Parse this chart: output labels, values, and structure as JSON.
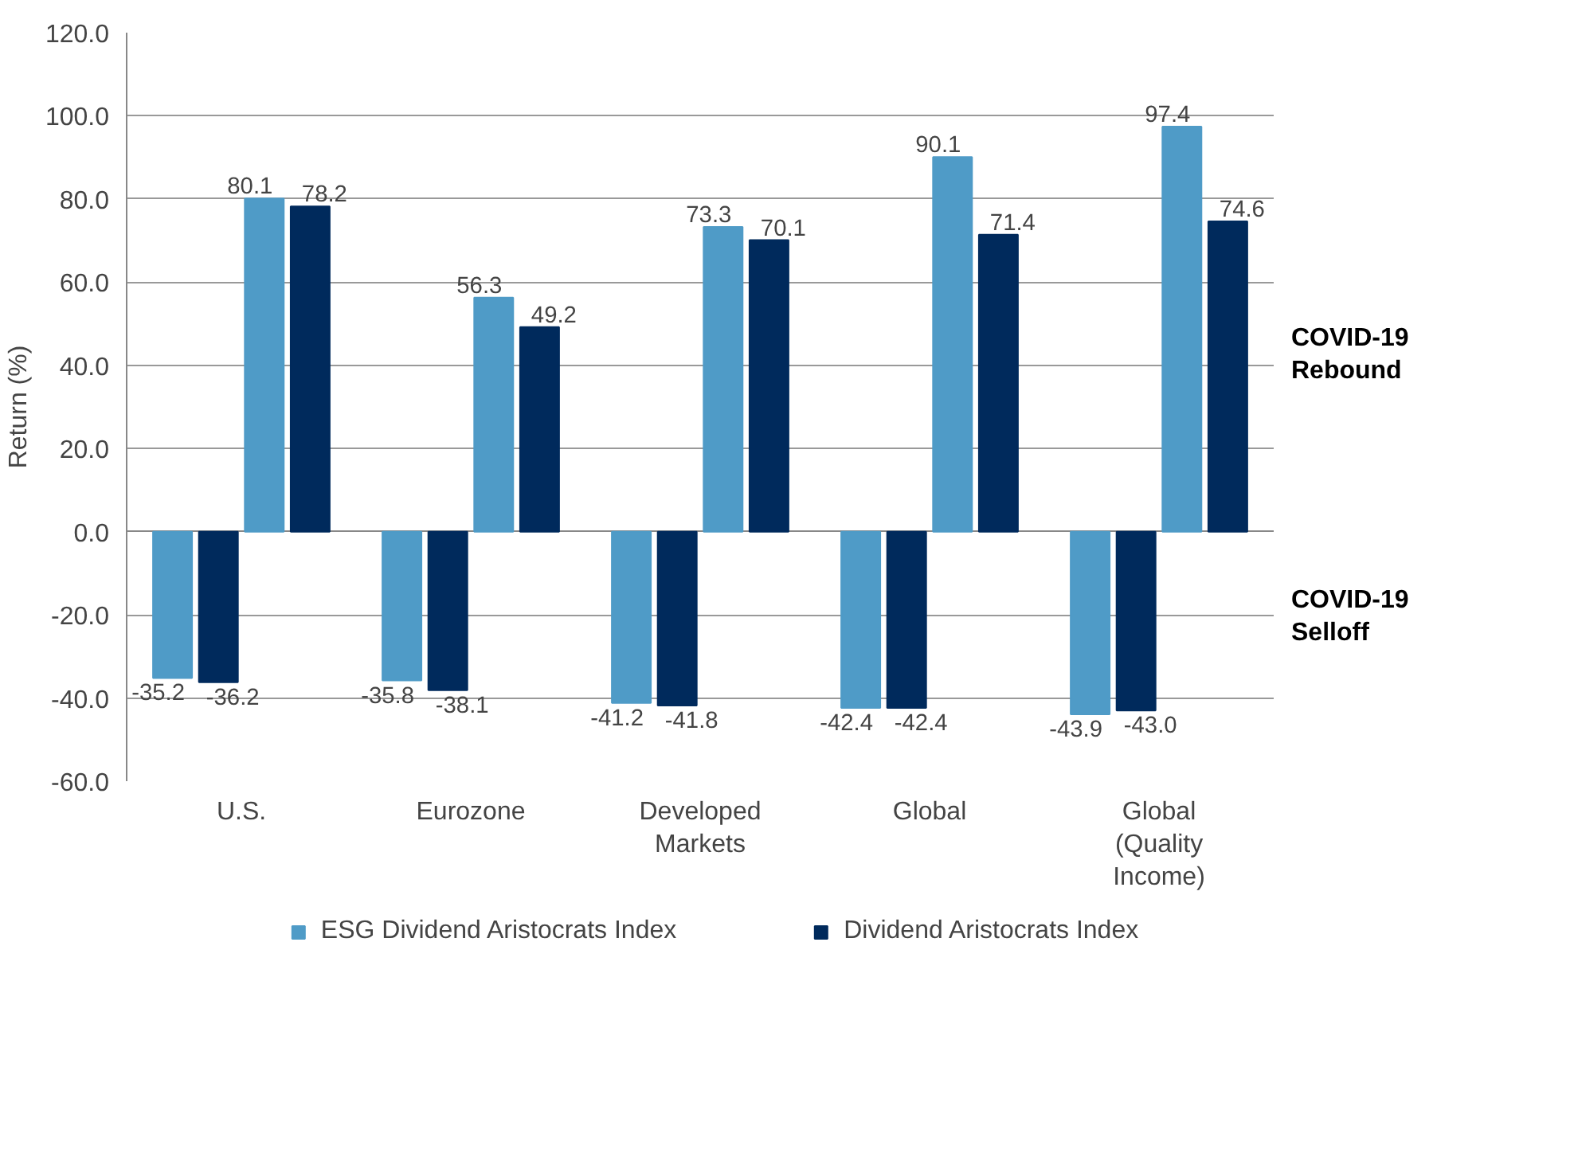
{
  "chart_data": {
    "type": "bar",
    "ylabel": "Return (%)",
    "categories": [
      "U.S.",
      "Eurozone",
      "Developed Markets",
      "Global",
      "Global (Quality Income)"
    ],
    "series": [
      {
        "name": "ESG Dividend Aristocrats Index",
        "color": "#4f9bc7",
        "values": [
          -35.2,
          -35.8,
          -41.2,
          -42.4,
          -43.9
        ],
        "value_labels": [
          "-35.2",
          "-35.8",
          "-41.2",
          "-42.4",
          "-43.9"
        ]
      },
      {
        "name": "Dividend Aristocrats Index",
        "color": "#002a5c",
        "values": [
          -36.2,
          -38.1,
          -41.8,
          -42.4,
          -43.0
        ],
        "value_labels": [
          "-36.2",
          "-38.1",
          "-41.8",
          "-42.4",
          "-43.0"
        ]
      },
      {
        "color": "#4f9bc7",
        "values": [
          80.1,
          56.3,
          73.3,
          90.1,
          97.4
        ],
        "value_labels": [
          "80.1",
          "56.3",
          "73.3",
          "90.1",
          "97.4"
        ]
      },
      {
        "color": "#002a5c",
        "values": [
          78.2,
          49.2,
          70.1,
          71.4,
          74.6
        ],
        "value_labels": [
          "78.2",
          "49.2",
          "70.1",
          "71.4",
          "74.6"
        ]
      }
    ],
    "ylim": [
      -60,
      120
    ],
    "yticks": [
      {
        "value": -60,
        "label": "-60.0"
      },
      {
        "value": -40,
        "label": "-40.0"
      },
      {
        "value": -20,
        "label": "-20.0"
      },
      {
        "value": 0,
        "label": "0.0"
      },
      {
        "value": 20,
        "label": "20.0"
      },
      {
        "value": 40,
        "label": "40.0"
      },
      {
        "value": 60,
        "label": "60.0"
      },
      {
        "value": 80,
        "label": "80.0"
      },
      {
        "value": 100,
        "label": "100.0"
      },
      {
        "value": 120,
        "label": "120.0"
      }
    ],
    "annotations": [
      "COVID-19 Rebound",
      "COVID-19 Selloff"
    ],
    "grid": "y",
    "legend": "bottom"
  }
}
